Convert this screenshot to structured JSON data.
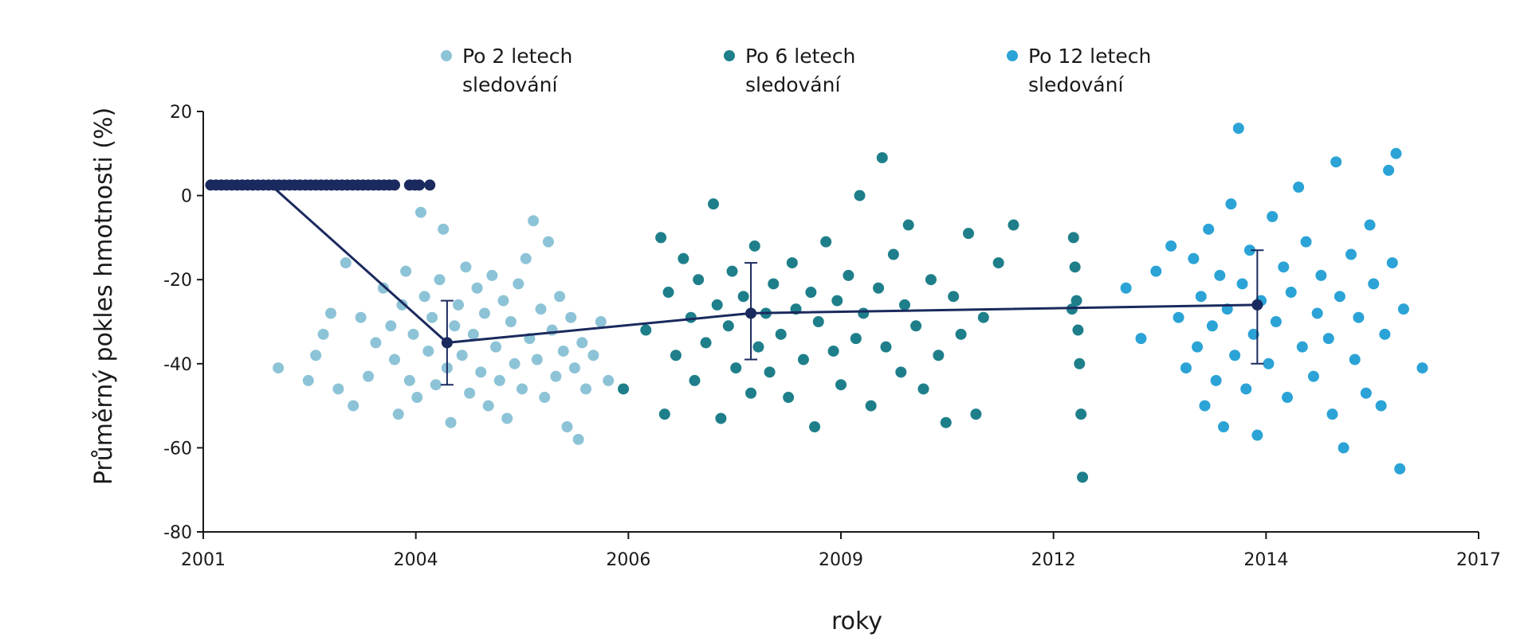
{
  "chart_data": {
    "type": "scatter",
    "title": "",
    "xlabel": "roky",
    "ylabel": "Průměrný pokles hmotnosti (%)",
    "x_ticks": [
      "2001",
      "2004",
      "2006",
      "2009",
      "2012",
      "2014",
      "2017"
    ],
    "ylim": [
      -80,
      20
    ],
    "y_ticks": [
      20,
      0,
      -20,
      -40,
      -60,
      -80
    ],
    "grid": false,
    "legend_position": "top",
    "colors": {
      "series_2y": "#8dc3d6",
      "series_6y": "#1e7f8a",
      "series_12y": "#2ba3d6",
      "mean_line": "#1a2a5e",
      "axis": "#1a1a1a"
    },
    "series": [
      {
        "name": "Po 2 letech sledování",
        "points": [
          {
            "x": 2002.0,
            "y": -41
          },
          {
            "x": 2002.4,
            "y": -44
          },
          {
            "x": 2002.5,
            "y": -38
          },
          {
            "x": 2002.6,
            "y": -33
          },
          {
            "x": 2002.7,
            "y": -28
          },
          {
            "x": 2002.8,
            "y": -46
          },
          {
            "x": 2002.9,
            "y": -16
          },
          {
            "x": 2003.0,
            "y": -50
          },
          {
            "x": 2003.1,
            "y": -29
          },
          {
            "x": 2003.2,
            "y": -43
          },
          {
            "x": 2003.3,
            "y": -35
          },
          {
            "x": 2003.4,
            "y": -22
          },
          {
            "x": 2003.5,
            "y": -31
          },
          {
            "x": 2003.55,
            "y": -39
          },
          {
            "x": 2003.6,
            "y": -52
          },
          {
            "x": 2003.65,
            "y": -26
          },
          {
            "x": 2003.7,
            "y": -18
          },
          {
            "x": 2003.75,
            "y": -44
          },
          {
            "x": 2003.8,
            "y": -33
          },
          {
            "x": 2003.85,
            "y": -48
          },
          {
            "x": 2003.9,
            "y": -4
          },
          {
            "x": 2003.95,
            "y": -24
          },
          {
            "x": 2004.0,
            "y": -37
          },
          {
            "x": 2004.05,
            "y": -29
          },
          {
            "x": 2004.1,
            "y": -45
          },
          {
            "x": 2004.15,
            "y": -20
          },
          {
            "x": 2004.2,
            "y": -8
          },
          {
            "x": 2004.25,
            "y": -41
          },
          {
            "x": 2004.3,
            "y": -54
          },
          {
            "x": 2004.35,
            "y": -31
          },
          {
            "x": 2004.4,
            "y": -26
          },
          {
            "x": 2004.45,
            "y": -38
          },
          {
            "x": 2004.5,
            "y": -17
          },
          {
            "x": 2004.55,
            "y": -47
          },
          {
            "x": 2004.6,
            "y": -33
          },
          {
            "x": 2004.65,
            "y": -22
          },
          {
            "x": 2004.7,
            "y": -42
          },
          {
            "x": 2004.75,
            "y": -28
          },
          {
            "x": 2004.8,
            "y": -50
          },
          {
            "x": 2004.85,
            "y": -19
          },
          {
            "x": 2004.9,
            "y": -36
          },
          {
            "x": 2004.95,
            "y": -44
          },
          {
            "x": 2005.0,
            "y": -25
          },
          {
            "x": 2005.05,
            "y": -53
          },
          {
            "x": 2005.1,
            "y": -30
          },
          {
            "x": 2005.15,
            "y": -40
          },
          {
            "x": 2005.2,
            "y": -21
          },
          {
            "x": 2005.25,
            "y": -46
          },
          {
            "x": 2005.3,
            "y": -15
          },
          {
            "x": 2005.35,
            "y": -34
          },
          {
            "x": 2005.4,
            "y": -6
          },
          {
            "x": 2005.45,
            "y": -39
          },
          {
            "x": 2005.5,
            "y": -27
          },
          {
            "x": 2005.55,
            "y": -48
          },
          {
            "x": 2005.6,
            "y": -11
          },
          {
            "x": 2005.65,
            "y": -32
          },
          {
            "x": 2005.7,
            "y": -43
          },
          {
            "x": 2005.75,
            "y": -24
          },
          {
            "x": 2005.8,
            "y": -37
          },
          {
            "x": 2005.85,
            "y": -55
          },
          {
            "x": 2005.9,
            "y": -29
          },
          {
            "x": 2005.95,
            "y": -41
          },
          {
            "x": 2006.0,
            "y": -58
          },
          {
            "x": 2006.05,
            "y": -35
          },
          {
            "x": 2006.1,
            "y": -46
          },
          {
            "x": 2006.2,
            "y": -38
          },
          {
            "x": 2006.3,
            "y": -30
          },
          {
            "x": 2006.4,
            "y": -44
          }
        ]
      },
      {
        "name": "Po 6 letech sledování",
        "points": [
          {
            "x": 2006.6,
            "y": -46
          },
          {
            "x": 2006.9,
            "y": -32
          },
          {
            "x": 2007.1,
            "y": -10
          },
          {
            "x": 2007.15,
            "y": -52
          },
          {
            "x": 2007.2,
            "y": -23
          },
          {
            "x": 2007.3,
            "y": -38
          },
          {
            "x": 2007.4,
            "y": -15
          },
          {
            "x": 2007.5,
            "y": -29
          },
          {
            "x": 2007.55,
            "y": -44
          },
          {
            "x": 2007.6,
            "y": -20
          },
          {
            "x": 2007.7,
            "y": -35
          },
          {
            "x": 2007.8,
            "y": -2
          },
          {
            "x": 2007.85,
            "y": -26
          },
          {
            "x": 2007.9,
            "y": -53
          },
          {
            "x": 2008.0,
            "y": -31
          },
          {
            "x": 2008.05,
            "y": -18
          },
          {
            "x": 2008.1,
            "y": -41
          },
          {
            "x": 2008.2,
            "y": -24
          },
          {
            "x": 2008.3,
            "y": -47
          },
          {
            "x": 2008.35,
            "y": -12
          },
          {
            "x": 2008.4,
            "y": -36
          },
          {
            "x": 2008.5,
            "y": -28
          },
          {
            "x": 2008.55,
            "y": -42
          },
          {
            "x": 2008.6,
            "y": -21
          },
          {
            "x": 2008.7,
            "y": -33
          },
          {
            "x": 2008.8,
            "y": -48
          },
          {
            "x": 2008.85,
            "y": -16
          },
          {
            "x": 2008.9,
            "y": -27
          },
          {
            "x": 2009.0,
            "y": -39
          },
          {
            "x": 2009.1,
            "y": -23
          },
          {
            "x": 2009.15,
            "y": -55
          },
          {
            "x": 2009.2,
            "y": -30
          },
          {
            "x": 2009.3,
            "y": -11
          },
          {
            "x": 2009.4,
            "y": -37
          },
          {
            "x": 2009.45,
            "y": -25
          },
          {
            "x": 2009.5,
            "y": -45
          },
          {
            "x": 2009.6,
            "y": -19
          },
          {
            "x": 2009.7,
            "y": -34
          },
          {
            "x": 2009.75,
            "y": 0
          },
          {
            "x": 2009.8,
            "y": -28
          },
          {
            "x": 2009.9,
            "y": -50
          },
          {
            "x": 2010.0,
            "y": -22
          },
          {
            "x": 2010.05,
            "y": 9
          },
          {
            "x": 2010.1,
            "y": -36
          },
          {
            "x": 2010.2,
            "y": -14
          },
          {
            "x": 2010.3,
            "y": -42
          },
          {
            "x": 2010.35,
            "y": -26
          },
          {
            "x": 2010.4,
            "y": -7
          },
          {
            "x": 2010.5,
            "y": -31
          },
          {
            "x": 2010.6,
            "y": -46
          },
          {
            "x": 2010.7,
            "y": -20
          },
          {
            "x": 2010.8,
            "y": -38
          },
          {
            "x": 2010.9,
            "y": -54
          },
          {
            "x": 2011.0,
            "y": -24
          },
          {
            "x": 2011.1,
            "y": -33
          },
          {
            "x": 2011.2,
            "y": -9
          },
          {
            "x": 2011.3,
            "y": -52
          },
          {
            "x": 2011.4,
            "y": -29
          },
          {
            "x": 2011.6,
            "y": -16
          },
          {
            "x": 2011.8,
            "y": -7
          },
          {
            "x": 2012.6,
            "y": -10
          },
          {
            "x": 2012.62,
            "y": -17
          },
          {
            "x": 2012.64,
            "y": -25
          },
          {
            "x": 2012.66,
            "y": -32
          },
          {
            "x": 2012.68,
            "y": -40
          },
          {
            "x": 2012.7,
            "y": -52
          },
          {
            "x": 2012.72,
            "y": -67
          },
          {
            "x": 2012.58,
            "y": -27
          }
        ]
      },
      {
        "name": "Po 12 letech sledování",
        "points": [
          {
            "x": 2013.3,
            "y": -22
          },
          {
            "x": 2013.5,
            "y": -34
          },
          {
            "x": 2013.7,
            "y": -18
          },
          {
            "x": 2013.9,
            "y": -12
          },
          {
            "x": 2014.0,
            "y": -29
          },
          {
            "x": 2014.1,
            "y": -41
          },
          {
            "x": 2014.2,
            "y": -15
          },
          {
            "x": 2014.25,
            "y": -36
          },
          {
            "x": 2014.3,
            "y": -24
          },
          {
            "x": 2014.35,
            "y": -50
          },
          {
            "x": 2014.4,
            "y": -8
          },
          {
            "x": 2014.45,
            "y": -31
          },
          {
            "x": 2014.5,
            "y": -44
          },
          {
            "x": 2014.55,
            "y": -19
          },
          {
            "x": 2014.6,
            "y": -55
          },
          {
            "x": 2014.65,
            "y": -27
          },
          {
            "x": 2014.7,
            "y": -2
          },
          {
            "x": 2014.75,
            "y": -38
          },
          {
            "x": 2014.8,
            "y": 16
          },
          {
            "x": 2014.85,
            "y": -21
          },
          {
            "x": 2014.9,
            "y": -46
          },
          {
            "x": 2014.95,
            "y": -13
          },
          {
            "x": 2015.0,
            "y": -33
          },
          {
            "x": 2015.05,
            "y": -57
          },
          {
            "x": 2015.1,
            "y": -25
          },
          {
            "x": 2015.2,
            "y": -40
          },
          {
            "x": 2015.25,
            "y": -5
          },
          {
            "x": 2015.3,
            "y": -30
          },
          {
            "x": 2015.4,
            "y": -17
          },
          {
            "x": 2015.45,
            "y": -48
          },
          {
            "x": 2015.5,
            "y": -23
          },
          {
            "x": 2015.6,
            "y": 2
          },
          {
            "x": 2015.65,
            "y": -36
          },
          {
            "x": 2015.7,
            "y": -11
          },
          {
            "x": 2015.8,
            "y": -43
          },
          {
            "x": 2015.85,
            "y": -28
          },
          {
            "x": 2015.9,
            "y": -19
          },
          {
            "x": 2016.0,
            "y": -34
          },
          {
            "x": 2016.05,
            "y": -52
          },
          {
            "x": 2016.1,
            "y": 8
          },
          {
            "x": 2016.15,
            "y": -24
          },
          {
            "x": 2016.2,
            "y": -60
          },
          {
            "x": 2016.3,
            "y": -14
          },
          {
            "x": 2016.35,
            "y": -39
          },
          {
            "x": 2016.4,
            "y": -29
          },
          {
            "x": 2016.5,
            "y": -47
          },
          {
            "x": 2016.55,
            "y": -7
          },
          {
            "x": 2016.6,
            "y": -21
          },
          {
            "x": 2016.7,
            "y": -50
          },
          {
            "x": 2016.75,
            "y": -33
          },
          {
            "x": 2016.8,
            "y": 6
          },
          {
            "x": 2016.85,
            "y": -16
          },
          {
            "x": 2016.9,
            "y": 10
          },
          {
            "x": 2016.95,
            "y": -65
          },
          {
            "x": 2017.0,
            "y": -27
          },
          {
            "x": 2017.25,
            "y": -41
          }
        ]
      }
    ],
    "top_row_points": {
      "color": "#1a2a5e",
      "y": 2.5,
      "x_start": 2001.1,
      "x_end": 2003.55,
      "count": 36,
      "extra_x": [
        2003.75,
        2003.82,
        2003.88,
        2004.02
      ]
    },
    "mean_line": {
      "points": [
        {
          "x": 2001.1,
          "y": 2.5
        },
        {
          "x": 2001.9,
          "y": 2.5
        },
        {
          "x": 2004.25,
          "y": -35,
          "err_low": -45,
          "err_high": -25
        },
        {
          "x": 2008.3,
          "y": -28,
          "err_low": -39,
          "err_high": -16
        },
        {
          "x": 2015.05,
          "y": -26,
          "err_low": -40,
          "err_high": -13
        }
      ]
    }
  }
}
